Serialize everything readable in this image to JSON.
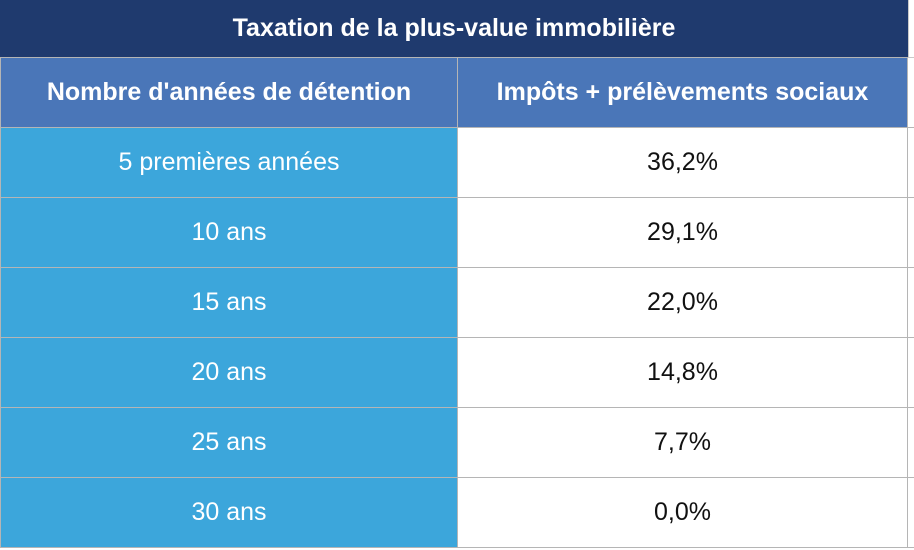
{
  "title": "Taxation de la plus-value immobilière",
  "headers": {
    "years": "Nombre d'années de détention",
    "rate": "Impôts + prélèvements sociaux"
  },
  "rows": [
    {
      "years": "5 premières années",
      "rate": "36,2%"
    },
    {
      "years": "10 ans",
      "rate": "29,1%"
    },
    {
      "years": "15 ans",
      "rate": "22,0%"
    },
    {
      "years": "20 ans",
      "rate": "14,8%"
    },
    {
      "years": "25 ans",
      "rate": "7,7%"
    },
    {
      "years": "30 ans",
      "rate": "0,0%"
    }
  ],
  "colors": {
    "title_background": "#1f3a6e",
    "header_background": "#4a76b8",
    "years_column_background": "#3ca6db",
    "rate_column_background": "#ffffff",
    "grid": "#b5b5b5"
  }
}
